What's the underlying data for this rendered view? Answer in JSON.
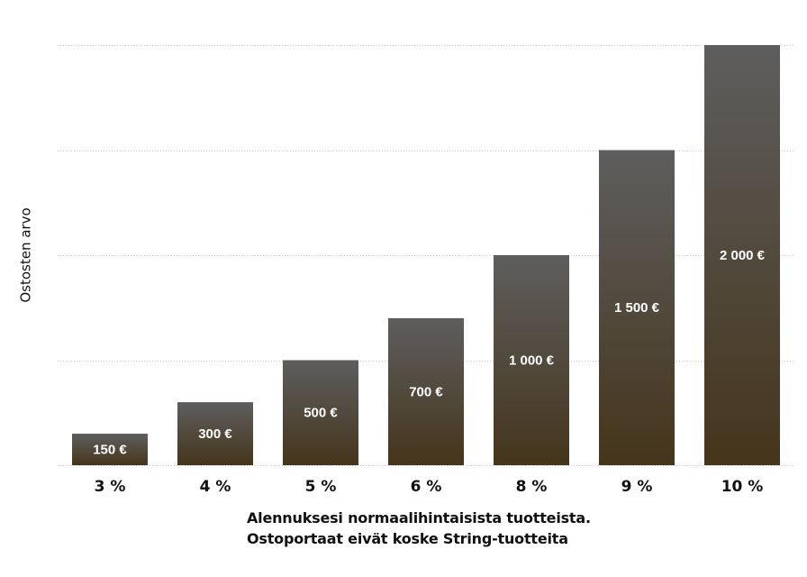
{
  "chart_data": {
    "type": "bar",
    "categories": [
      "3 %",
      "4 %",
      "5 %",
      "6 %",
      "8 %",
      "9 %",
      "10 %"
    ],
    "values": [
      150,
      300,
      500,
      700,
      1000,
      1500,
      2000
    ],
    "value_labels": [
      "150 €",
      "300 €",
      "500 €",
      "700 €",
      "1 000 €",
      "1 500 €",
      "2 000 €"
    ],
    "ylabel": "Ostosten arvo",
    "xlabel_lines": [
      "Alennuksesi normaalihintaisista tuotteista.",
      "Ostoportaat eivät koske String-tuotteita"
    ],
    "ylim": [
      0,
      2000
    ],
    "grid_values": [
      0,
      500,
      1000,
      1500,
      2000
    ],
    "grid": true,
    "legend": "none",
    "colors": {
      "bar_top": "#5e5e5e",
      "bar_bottom": "#45351b",
      "bar_label": "#ffffff",
      "grid": "#c9c9c9"
    }
  }
}
